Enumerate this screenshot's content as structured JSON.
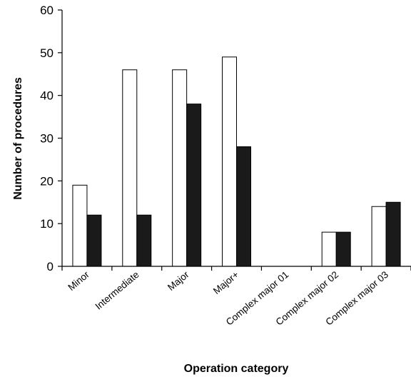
{
  "chart_data": {
    "type": "bar",
    "title": "",
    "xlabel": "Operation category",
    "ylabel": "Number of procedures",
    "categories": [
      "Minor",
      "Intermediate",
      "Major",
      "Major+",
      "Complex major 01",
      "Complex major 02",
      "Complex major 03"
    ],
    "series": [
      {
        "values": [
          19,
          46,
          46,
          49,
          0,
          8,
          14
        ],
        "color": "#ffffff"
      },
      {
        "values": [
          12,
          12,
          38,
          28,
          0,
          8,
          15
        ],
        "color": "#1a1a1a"
      }
    ],
    "ylim": [
      0,
      60
    ],
    "yticks": [
      0,
      10,
      20,
      30,
      40,
      50,
      60
    ],
    "grid": false,
    "legend": "none"
  }
}
